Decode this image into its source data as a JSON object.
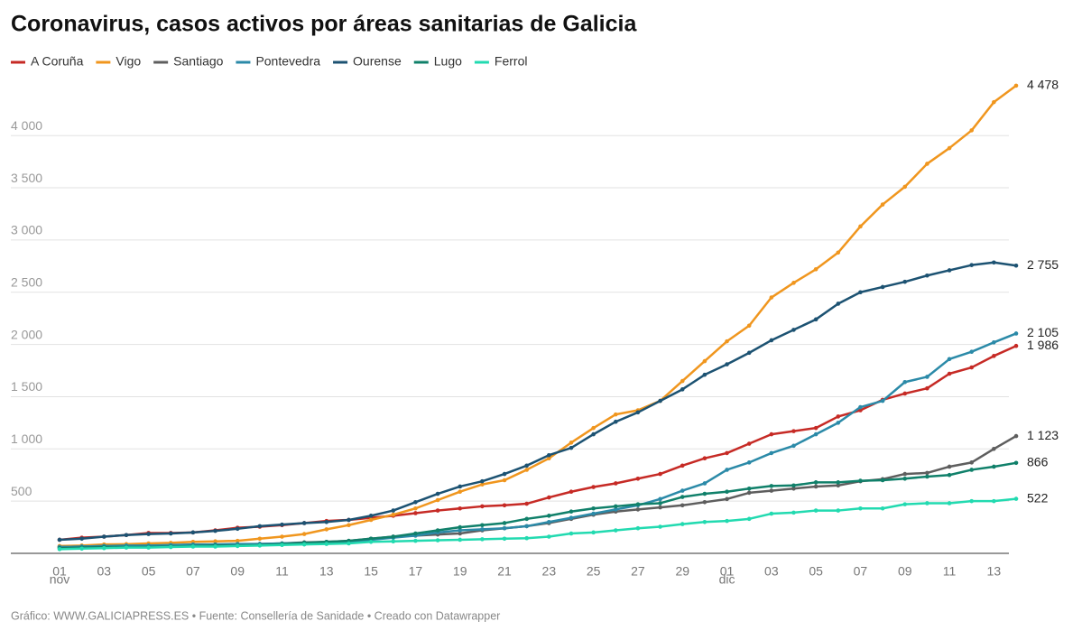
{
  "chart_data": {
    "type": "line",
    "title": "Coronavirus, casos activos por áreas sanitarias de Galicia",
    "source": "Gráfico: WWW.GALICIAPRESS.ES • Fuente: Consellería de Sanidade • Creado con Datawrapper",
    "categories": [
      "01",
      null,
      "03",
      null,
      "05",
      null,
      "07",
      null,
      "09",
      null,
      "11",
      null,
      "13",
      null,
      "15",
      null,
      "17",
      null,
      "19",
      null,
      "21",
      null,
      "23",
      null,
      "25",
      null,
      "27",
      null,
      "29",
      null,
      "01",
      null,
      "03",
      null,
      "05",
      null,
      "07",
      null,
      "09",
      null,
      "11",
      null,
      "13",
      null
    ],
    "months": [
      "nov",
      "dic"
    ],
    "ylim": [
      0,
      4700
    ],
    "yticks": [
      500,
      {
        "value": 1000,
        "label": "1 000"
      },
      {
        "value": 1500,
        "label": "1 500"
      },
      {
        "value": 2000,
        "label": "2 000"
      },
      {
        "value": 2500,
        "label": "2 500"
      },
      {
        "value": 3000,
        "label": "3 000"
      },
      {
        "value": 3500,
        "label": "3 500"
      },
      {
        "value": 4000,
        "label": "4 000"
      }
    ],
    "grid": true,
    "series": [
      {
        "name": "A Coruña",
        "color": "#c62a25",
        "values": [
          130,
          150,
          160,
          175,
          195,
          195,
          200,
          220,
          245,
          255,
          270,
          290,
          310,
          320,
          340,
          360,
          385,
          410,
          430,
          450,
          460,
          475,
          535,
          590,
          635,
          670,
          715,
          760,
          840,
          910,
          960,
          1050,
          1140,
          1170,
          1200,
          1310,
          1370,
          1470,
          1530,
          1580,
          1720,
          1780,
          1890,
          1986
        ],
        "value_labels": [
          null,
          null,
          null,
          null,
          null,
          null,
          null,
          null,
          null,
          null,
          null,
          null,
          null,
          null,
          null,
          null,
          null,
          null,
          null,
          null,
          null,
          null,
          null,
          null,
          null,
          null,
          null,
          null,
          null,
          null,
          null,
          null,
          null,
          null,
          null,
          null,
          null,
          null,
          null,
          null,
          null,
          null,
          null,
          "1 986"
        ]
      },
      {
        "name": "Vigo",
        "color": "#f0961e",
        "values": [
          70,
          75,
          85,
          88,
          95,
          100,
          110,
          115,
          120,
          140,
          160,
          185,
          230,
          270,
          320,
          370,
          430,
          510,
          590,
          660,
          700,
          800,
          910,
          1060,
          1200,
          1330,
          1370,
          1460,
          1650,
          1840,
          2030,
          2180,
          2450,
          2590,
          2720,
          2880,
          3130,
          3340,
          3510,
          3730,
          3880,
          4050,
          4320,
          4478
        ],
        "value_labels": [
          null,
          null,
          null,
          null,
          null,
          null,
          null,
          null,
          null,
          null,
          null,
          null,
          null,
          null,
          null,
          null,
          null,
          null,
          null,
          null,
          null,
          null,
          null,
          null,
          null,
          null,
          null,
          null,
          null,
          null,
          null,
          null,
          null,
          null,
          null,
          null,
          null,
          null,
          null,
          null,
          null,
          null,
          null,
          "4 478"
        ]
      },
      {
        "name": "Santiago",
        "color": "#5e5e5e",
        "values": [
          60,
          65,
          70,
          70,
          75,
          75,
          80,
          85,
          85,
          90,
          95,
          105,
          110,
          120,
          140,
          160,
          170,
          180,
          190,
          220,
          240,
          260,
          290,
          330,
          370,
          400,
          420,
          440,
          460,
          490,
          520,
          580,
          600,
          620,
          640,
          650,
          690,
          710,
          760,
          770,
          830,
          870,
          1000,
          1123
        ],
        "value_labels": [
          null,
          null,
          null,
          null,
          null,
          null,
          null,
          null,
          null,
          null,
          null,
          null,
          null,
          null,
          null,
          null,
          null,
          null,
          null,
          null,
          null,
          null,
          null,
          null,
          null,
          null,
          null,
          null,
          null,
          null,
          null,
          null,
          null,
          null,
          null,
          null,
          null,
          null,
          null,
          null,
          null,
          null,
          null,
          "1 123"
        ]
      },
      {
        "name": "Pontevedra",
        "color": "#2b8aa8",
        "values": [
          60,
          65,
          70,
          75,
          75,
          80,
          85,
          85,
          90,
          90,
          95,
          100,
          105,
          110,
          130,
          150,
          170,
          200,
          220,
          230,
          240,
          260,
          300,
          340,
          380,
          420,
          460,
          520,
          600,
          670,
          800,
          870,
          960,
          1030,
          1140,
          1250,
          1400,
          1460,
          1640,
          1690,
          1860,
          1930,
          2020,
          2105
        ],
        "value_labels": [
          null,
          null,
          null,
          null,
          null,
          null,
          null,
          null,
          null,
          null,
          null,
          null,
          null,
          null,
          null,
          null,
          null,
          null,
          null,
          null,
          null,
          null,
          null,
          null,
          null,
          null,
          null,
          null,
          null,
          null,
          null,
          null,
          null,
          null,
          null,
          null,
          null,
          null,
          null,
          null,
          null,
          null,
          null,
          "2 105"
        ]
      },
      {
        "name": "Ourense",
        "color": "#1c5272",
        "values": [
          130,
          140,
          160,
          175,
          185,
          190,
          200,
          215,
          235,
          260,
          275,
          290,
          300,
          320,
          360,
          410,
          490,
          570,
          640,
          690,
          760,
          840,
          940,
          1010,
          1140,
          1260,
          1350,
          1460,
          1570,
          1710,
          1810,
          1920,
          2040,
          2140,
          2240,
          2390,
          2500,
          2550,
          2600,
          2660,
          2710,
          2760,
          2785,
          2755
        ],
        "value_labels": [
          null,
          null,
          null,
          null,
          null,
          null,
          null,
          null,
          null,
          null,
          null,
          null,
          null,
          null,
          null,
          null,
          null,
          null,
          null,
          null,
          null,
          null,
          null,
          null,
          null,
          null,
          null,
          null,
          null,
          null,
          null,
          null,
          null,
          null,
          null,
          null,
          null,
          null,
          null,
          null,
          null,
          null,
          null,
          "2 755"
        ]
      },
      {
        "name": "Lugo",
        "color": "#10806a",
        "values": [
          50,
          55,
          60,
          60,
          60,
          65,
          70,
          75,
          75,
          80,
          90,
          100,
          110,
          120,
          140,
          160,
          190,
          220,
          250,
          270,
          290,
          330,
          360,
          400,
          430,
          450,
          470,
          480,
          540,
          570,
          590,
          620,
          645,
          650,
          680,
          680,
          695,
          700,
          715,
          735,
          750,
          800,
          830,
          866
        ],
        "value_labels": [
          null,
          null,
          null,
          null,
          null,
          null,
          null,
          null,
          null,
          null,
          null,
          null,
          null,
          null,
          null,
          null,
          null,
          null,
          null,
          null,
          null,
          null,
          null,
          null,
          null,
          null,
          null,
          null,
          null,
          null,
          null,
          null,
          null,
          null,
          null,
          null,
          null,
          null,
          null,
          null,
          null,
          null,
          null,
          "866"
        ]
      },
      {
        "name": "Ferrol",
        "color": "#22dab0",
        "values": [
          40,
          45,
          50,
          55,
          55,
          60,
          65,
          65,
          70,
          75,
          80,
          85,
          90,
          95,
          110,
          115,
          120,
          125,
          130,
          135,
          140,
          145,
          160,
          190,
          200,
          220,
          240,
          255,
          280,
          300,
          310,
          330,
          380,
          390,
          410,
          410,
          430,
          430,
          470,
          480,
          480,
          500,
          500,
          522
        ],
        "value_labels": [
          null,
          null,
          null,
          null,
          null,
          null,
          null,
          null,
          null,
          null,
          null,
          null,
          null,
          null,
          null,
          null,
          null,
          null,
          null,
          null,
          null,
          null,
          null,
          null,
          null,
          null,
          null,
          null,
          null,
          null,
          null,
          null,
          null,
          null,
          null,
          null,
          null,
          null,
          null,
          null,
          null,
          null,
          null,
          "522"
        ]
      }
    ]
  }
}
